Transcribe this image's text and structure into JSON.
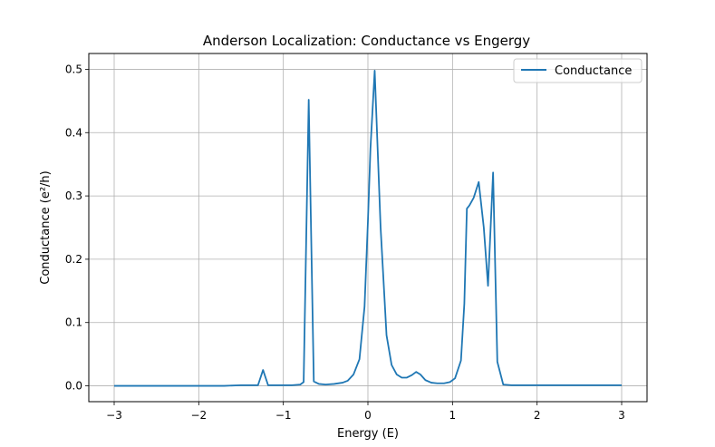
{
  "chart_data": {
    "type": "line",
    "title": "Anderson Localization: Conductance vs Engergy",
    "xlabel": "Energy (E)",
    "ylabel": "Conductance (e²/h)",
    "xlim": [
      -3.3,
      3.3
    ],
    "ylim": [
      -0.025,
      0.525
    ],
    "xticks": [
      -3,
      -2,
      -1,
      0,
      1,
      2,
      3
    ],
    "xtick_labels": [
      "−3",
      "−2",
      "−1",
      "0",
      "1",
      "2",
      "3"
    ],
    "yticks": [
      0.0,
      0.1,
      0.2,
      0.3,
      0.4,
      0.5
    ],
    "ytick_labels": [
      "0.0",
      "0.1",
      "0.2",
      "0.3",
      "0.4",
      "0.5"
    ],
    "grid": true,
    "legend": {
      "position": "top-right",
      "entries": [
        "Conductance"
      ]
    },
    "series": [
      {
        "name": "Conductance",
        "color": "#1f77b4",
        "x": [
          -3.0,
          -2.5,
          -2.0,
          -1.7,
          -1.5,
          -1.4,
          -1.3,
          -1.24,
          -1.18,
          -1.1,
          -1.0,
          -0.9,
          -0.8,
          -0.76,
          -0.7,
          -0.64,
          -0.58,
          -0.5,
          -0.4,
          -0.3,
          -0.24,
          -0.17,
          -0.1,
          -0.04,
          0.0,
          0.03,
          0.08,
          0.15,
          0.22,
          0.28,
          0.34,
          0.4,
          0.46,
          0.52,
          0.57,
          0.62,
          0.68,
          0.75,
          0.82,
          0.9,
          0.97,
          1.03,
          1.1,
          1.14,
          1.17,
          1.2,
          1.25,
          1.31,
          1.37,
          1.42,
          1.48,
          1.53,
          1.6,
          1.7,
          2.0,
          2.5,
          3.0
        ],
        "y": [
          0.0,
          0.0,
          0.0,
          0.0,
          0.001,
          0.001,
          0.001,
          0.025,
          0.001,
          0.001,
          0.001,
          0.001,
          0.002,
          0.006,
          0.452,
          0.007,
          0.003,
          0.002,
          0.003,
          0.005,
          0.008,
          0.018,
          0.042,
          0.125,
          0.26,
          0.375,
          0.498,
          0.25,
          0.08,
          0.033,
          0.018,
          0.013,
          0.013,
          0.017,
          0.022,
          0.018,
          0.009,
          0.005,
          0.004,
          0.004,
          0.006,
          0.012,
          0.04,
          0.13,
          0.28,
          0.285,
          0.297,
          0.322,
          0.25,
          0.158,
          0.337,
          0.038,
          0.002,
          0.001,
          0.001,
          0.001,
          0.001
        ]
      }
    ]
  }
}
